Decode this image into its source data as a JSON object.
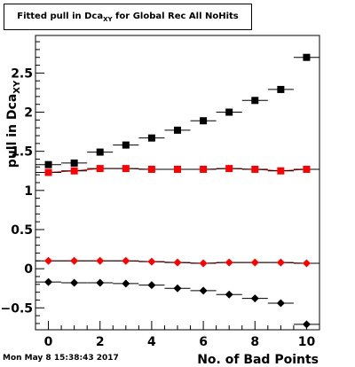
{
  "title": {
    "main_before": "Fitted pull in Dca",
    "subscript": "XY",
    "main_after": " for Global Rec All NoHits"
  },
  "timestamp": "Mon May  8 15:38:43 2017",
  "chart_data": {
    "type": "scatter",
    "xlabel": "No. of Bad Points",
    "ylabel": "pull in Dca",
    "ylabel_subscript": "XY",
    "xlim": [
      -0.5,
      10.5
    ],
    "ylim": [
      -0.78,
      2.98
    ],
    "x_ticks": [
      0,
      2,
      4,
      6,
      8,
      10
    ],
    "x_tick_labels": [
      "0",
      "2",
      "4",
      "6",
      "8",
      "10"
    ],
    "y_ticks": [
      -0.5,
      0,
      0.5,
      1,
      1.5,
      2,
      2.5
    ],
    "y_tick_labels": [
      "−0.5",
      "0",
      "0.5",
      "1",
      "1.5",
      "2",
      "2.5"
    ],
    "grid": false,
    "x": [
      0,
      1,
      2,
      3,
      4,
      5,
      6,
      7,
      8,
      9,
      10
    ],
    "series": [
      {
        "marker": "square",
        "color": "#000000",
        "values": [
          1.33,
          1.35,
          1.49,
          1.58,
          1.67,
          1.77,
          1.89,
          2.0,
          2.15,
          2.29,
          2.7
        ]
      },
      {
        "marker": "square",
        "color": "#ff0000",
        "fit_line": true,
        "values": [
          1.23,
          1.25,
          1.28,
          1.28,
          1.27,
          1.27,
          1.27,
          1.28,
          1.27,
          1.25,
          1.27
        ]
      },
      {
        "marker": "diamond",
        "color": "#ff0000",
        "fit_line": true,
        "values": [
          0.1,
          0.1,
          0.1,
          0.1,
          0.09,
          0.08,
          0.07,
          0.08,
          0.08,
          0.08,
          0.07
        ]
      },
      {
        "marker": "diamond",
        "color": "#000000",
        "values": [
          -0.17,
          -0.18,
          -0.18,
          -0.19,
          -0.21,
          -0.25,
          -0.28,
          -0.33,
          -0.38,
          -0.44,
          -0.71
        ]
      }
    ]
  }
}
